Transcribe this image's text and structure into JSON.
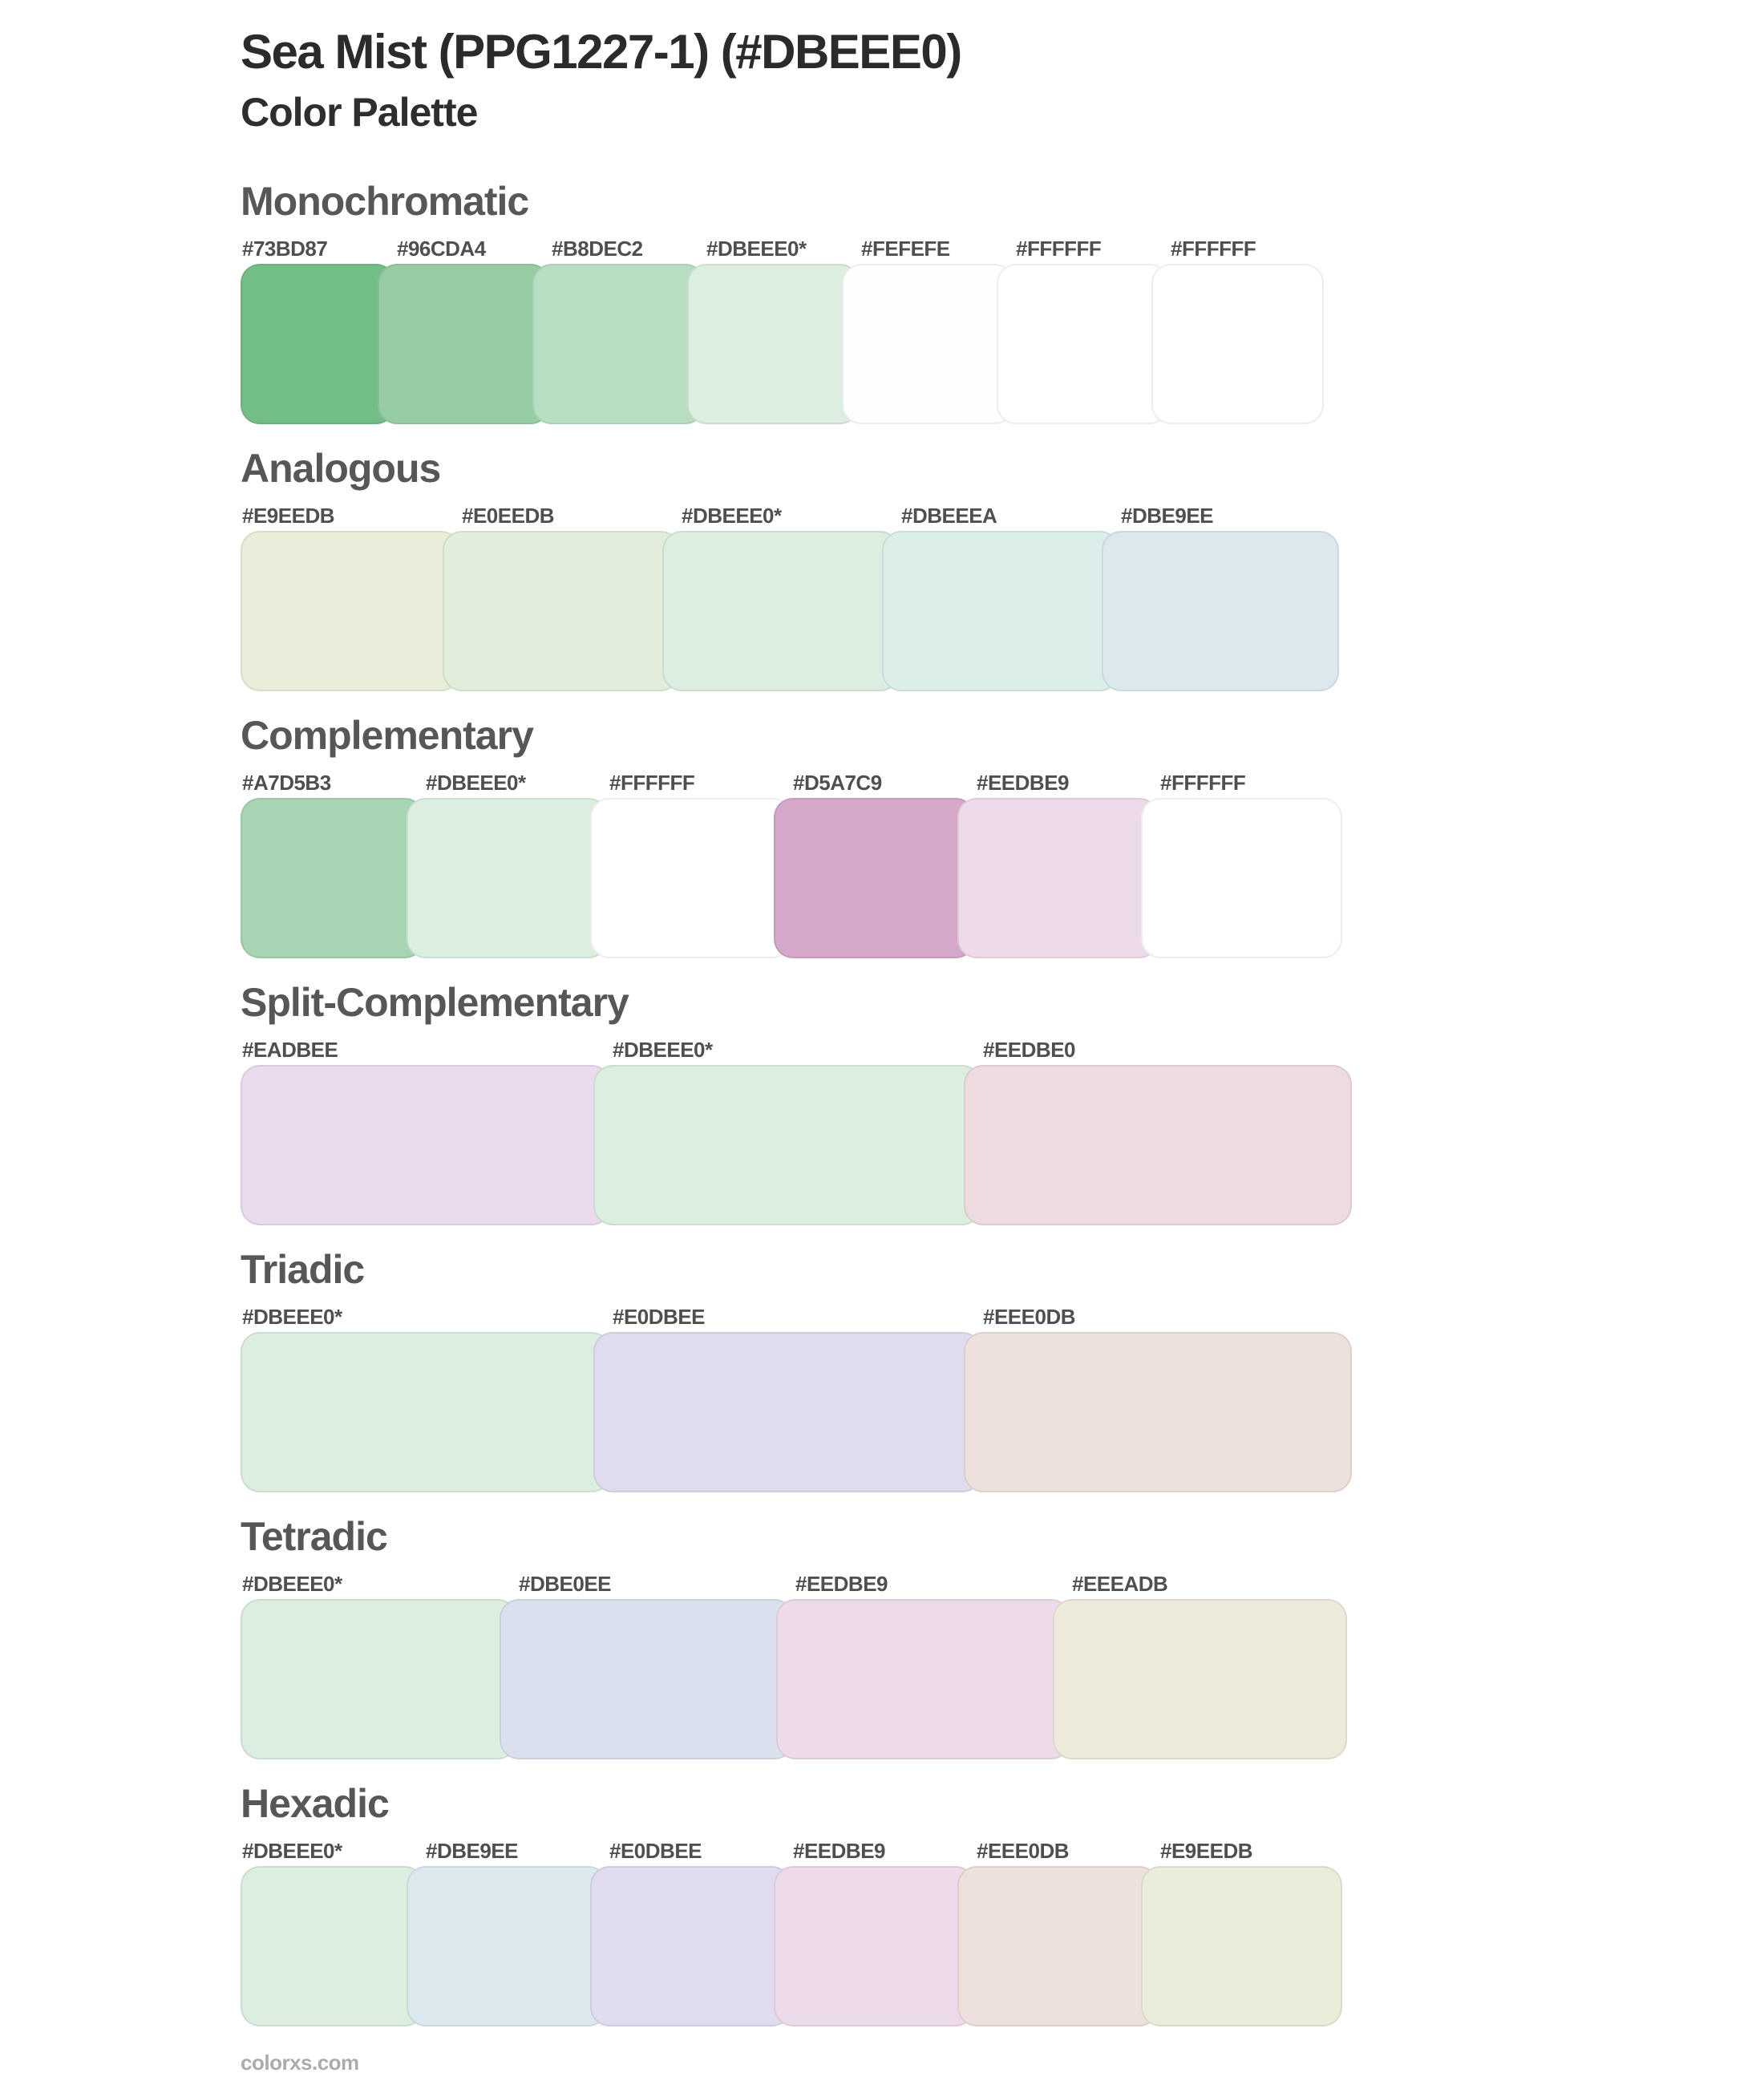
{
  "page": {
    "title": "Sea Mist (PPG1227-1) (#DBEEE0)",
    "subtitle": "Color Palette",
    "footer": "colorxs.com",
    "base_color": "#DBEEE0",
    "base_color_label": "#DBEEE0*"
  },
  "schemes": [
    {
      "name": "Monochromatic",
      "colors": [
        {
          "label": "#73BD87",
          "hex": "#73BD87",
          "base": false
        },
        {
          "label": "#96CDA4",
          "hex": "#96CDA4",
          "base": false
        },
        {
          "label": "#B8DEC2",
          "hex": "#B8DEC2",
          "base": false
        },
        {
          "label": "#DBEEE0*",
          "hex": "#DBEEE0",
          "base": true
        },
        {
          "label": "#FEFEFE",
          "hex": "#FEFEFE",
          "base": false
        },
        {
          "label": "#FFFFFF",
          "hex": "#FFFFFF",
          "base": false
        },
        {
          "label": "#FFFFFF",
          "hex": "#FFFFFF",
          "base": false
        }
      ]
    },
    {
      "name": "Analogous",
      "colors": [
        {
          "label": "#E9EEDB",
          "hex": "#E9EEDB",
          "base": false
        },
        {
          "label": "#E0EEDB",
          "hex": "#E0EEDB",
          "base": false
        },
        {
          "label": "#DBEEE0*",
          "hex": "#DBEEE0",
          "base": true
        },
        {
          "label": "#DBEEEA",
          "hex": "#DBEEEA",
          "base": false
        },
        {
          "label": "#DBE9EE",
          "hex": "#DBE9EE",
          "base": false
        }
      ]
    },
    {
      "name": "Complementary",
      "colors": [
        {
          "label": "#A7D5B3",
          "hex": "#A7D5B3",
          "base": false
        },
        {
          "label": "#DBEEE0*",
          "hex": "#DBEEE0",
          "base": true
        },
        {
          "label": "#FFFFFF",
          "hex": "#FFFFFF",
          "base": false
        },
        {
          "label": "#D5A7C9",
          "hex": "#D5A7C9",
          "base": false
        },
        {
          "label": "#EEDBE9",
          "hex": "#EEDBE9",
          "base": false
        },
        {
          "label": "#FFFFFF",
          "hex": "#FFFFFF",
          "base": false
        }
      ]
    },
    {
      "name": "Split-Complementary",
      "colors": [
        {
          "label": "#EADBEE",
          "hex": "#EADBEE",
          "base": false
        },
        {
          "label": "#DBEEE0*",
          "hex": "#DBEEE0",
          "base": true
        },
        {
          "label": "#EEDBE0",
          "hex": "#EEDBE0",
          "base": false
        }
      ]
    },
    {
      "name": "Triadic",
      "colors": [
        {
          "label": "#DBEEE0*",
          "hex": "#DBEEE0",
          "base": true
        },
        {
          "label": "#E0DBEE",
          "hex": "#E0DBEE",
          "base": false
        },
        {
          "label": "#EEE0DB",
          "hex": "#EEE0DB",
          "base": false
        }
      ]
    },
    {
      "name": "Tetradic",
      "colors": [
        {
          "label": "#DBEEE0*",
          "hex": "#DBEEE0",
          "base": true
        },
        {
          "label": "#DBE0EE",
          "hex": "#DBE0EE",
          "base": false
        },
        {
          "label": "#EEDBE9",
          "hex": "#EEDBE9",
          "base": false
        },
        {
          "label": "#EEEADB",
          "hex": "#EEEADB",
          "base": false
        }
      ]
    },
    {
      "name": "Hexadic",
      "colors": [
        {
          "label": "#DBEEE0*",
          "hex": "#DBEEE0",
          "base": true
        },
        {
          "label": "#DBE9EE",
          "hex": "#DBE9EE",
          "base": false
        },
        {
          "label": "#E0DBEE",
          "hex": "#E0DBEE",
          "base": false
        },
        {
          "label": "#EEDBE9",
          "hex": "#EEDBE9",
          "base": false
        },
        {
          "label": "#EEE0DB",
          "hex": "#EEE0DB",
          "base": false
        },
        {
          "label": "#E9EEDB",
          "hex": "#E9EEDB",
          "base": false
        }
      ]
    }
  ]
}
